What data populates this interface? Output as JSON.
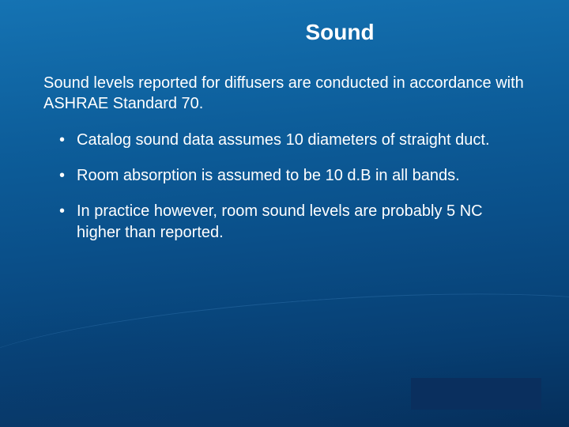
{
  "slide": {
    "title": "Sound",
    "intro": "Sound levels reported for diffusers are conducted in accordance with ASHRAE Standard 70.",
    "bullets": [
      "Catalog sound data assumes 10 diameters of straight duct.",
      "Room absorption is assumed to be 10 d.B in all bands.",
      "In practice however, room sound levels are probably 5 NC higher than reported."
    ],
    "title_fontsize": 28,
    "body_fontsize": 20,
    "text_color": "#ffffff",
    "background_gradient": {
      "from": "#1573b3",
      "to": "#052e5a"
    },
    "logo_box_color": "#0a2f5e"
  }
}
